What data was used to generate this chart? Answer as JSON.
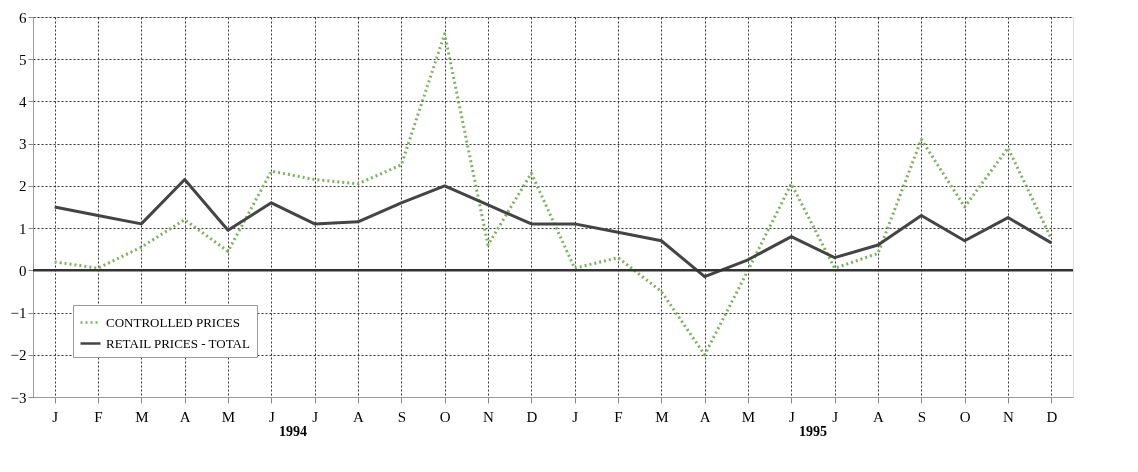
{
  "chart_data": {
    "type": "line",
    "categories": [
      "J",
      "F",
      "M",
      "A",
      "M",
      "J",
      "J",
      "A",
      "S",
      "O",
      "N",
      "D",
      "J",
      "F",
      "M",
      "A",
      "M",
      "J",
      "J",
      "A",
      "S",
      "O",
      "N",
      "D"
    ],
    "ylim": [
      -3,
      6
    ],
    "yticks": [
      -3,
      -2,
      -1,
      0,
      1,
      2,
      3,
      4,
      5,
      6
    ],
    "series": [
      {
        "name": "CONTROLLED PRICES",
        "color": "#7cb35d",
        "line_style": "dotted",
        "values": [
          0.2,
          0.05,
          0.55,
          1.2,
          0.45,
          2.35,
          2.15,
          2.05,
          2.5,
          5.6,
          0.6,
          2.3,
          0.05,
          0.3,
          -0.5,
          -2.0,
          0.0,
          2.05,
          0.05,
          0.4,
          3.1,
          1.5,
          2.9,
          0.75
        ]
      },
      {
        "name": "RETAIL PRICES - TOTAL",
        "color": "#444444",
        "line_style": "solid",
        "values": [
          1.5,
          1.3,
          1.1,
          2.15,
          0.95,
          1.6,
          1.1,
          1.15,
          1.6,
          2.0,
          1.55,
          1.1,
          1.1,
          0.9,
          0.7,
          -0.15,
          0.25,
          0.8,
          0.3,
          0.6,
          1.3,
          0.7,
          1.25,
          0.65
        ]
      }
    ],
    "ref_lines": [
      {
        "axis": "y",
        "value": 0,
        "color": "#333333"
      }
    ],
    "annotations": [
      "1994",
      "1995"
    ],
    "grid": true,
    "legend": "bottom left",
    "marker": "none"
  }
}
